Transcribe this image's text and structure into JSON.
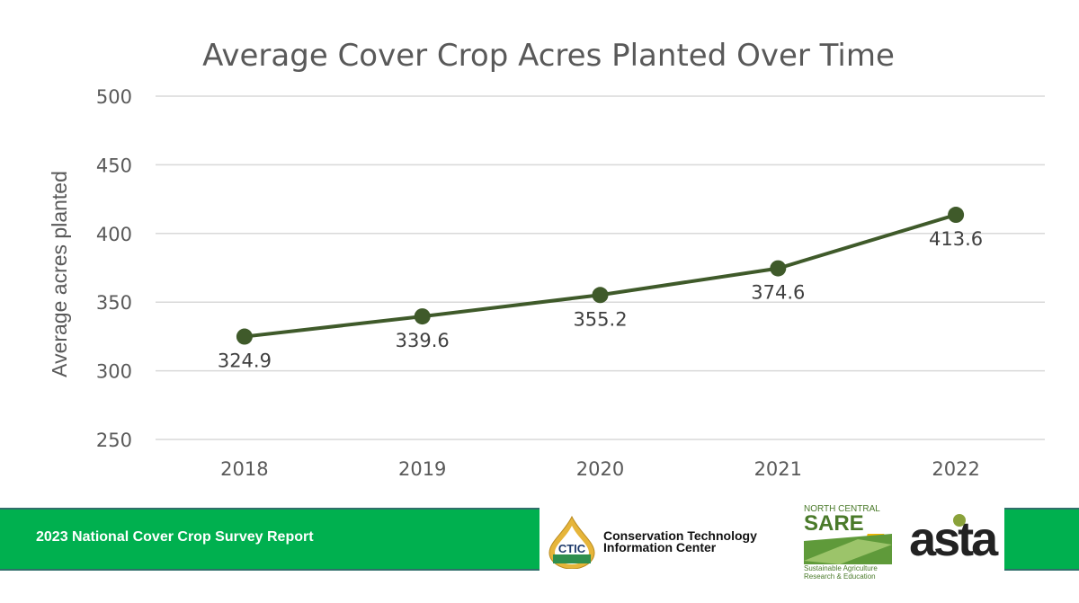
{
  "chart_data": {
    "type": "line",
    "title": "Average Cover Crop Acres Planted Over Time",
    "xlabel": "",
    "ylabel": "Average acres planted",
    "categories": [
      "2018",
      "2019",
      "2020",
      "2021",
      "2022"
    ],
    "values": [
      324.9,
      339.6,
      355.2,
      374.6,
      413.6
    ],
    "data_labels": [
      "324.9",
      "339.6",
      "355.2",
      "374.6",
      "413.6"
    ],
    "ylim": [
      250,
      500
    ],
    "yticks": [
      250,
      300,
      350,
      400,
      450,
      500
    ],
    "grid": true,
    "line_color": "#3f5a2a"
  },
  "footer": {
    "report_title": "2023 National Cover Crop Survey Report",
    "ctic_logo": {
      "abbr": "CTIC",
      "line1": "Conservation Technology",
      "line2": "Information Center"
    },
    "sare_logo": {
      "top": "NORTH CENTRAL",
      "name": "SARE",
      "line1": "Sustainable Agriculture",
      "line2": "Research & Education"
    },
    "asta_logo": "asta",
    "bar_color": "#00b04f"
  }
}
